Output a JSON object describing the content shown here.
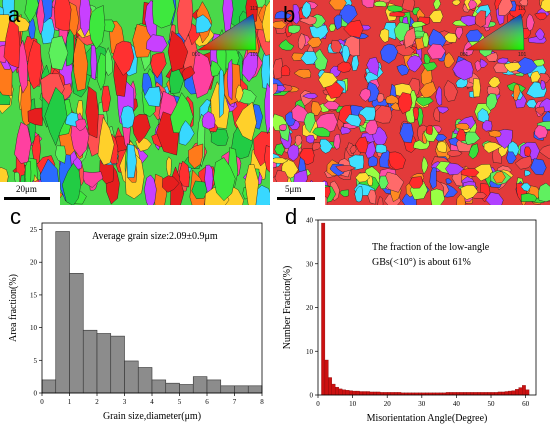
{
  "panels": {
    "a": {
      "letter": "a",
      "scale_label": "20μm",
      "ipf": {
        "top": "111",
        "left": "001",
        "right": "101"
      }
    },
    "b": {
      "letter": "b",
      "scale_label": "5μm",
      "ipf": {
        "top": "111",
        "left": "001",
        "right": "101"
      }
    },
    "c": {
      "letter": "c"
    },
    "d": {
      "letter": "d"
    }
  },
  "chart_data": [
    {
      "type": "bar",
      "panel": "c",
      "annotation": "Average grain size:2.09±0.9μm",
      "xlabel": "Grain size,diameter(μm)",
      "ylabel": "Area fraction(%)",
      "xlim": [
        0,
        8
      ],
      "ylim": [
        0,
        26
      ],
      "xticks": [
        0,
        1,
        2,
        3,
        4,
        5,
        6,
        7,
        8
      ],
      "yticks": [
        0,
        5,
        10,
        15,
        20,
        25
      ],
      "bin_width": 0.5,
      "bin_starts": [
        0,
        0.5,
        1.0,
        1.5,
        2.0,
        2.5,
        3.0,
        3.5,
        4.0,
        4.5,
        5.0,
        5.5,
        6.0,
        6.5,
        7.0,
        7.5
      ],
      "values": [
        2.0,
        24.7,
        18.3,
        9.6,
        9.1,
        8.7,
        4.9,
        3.9,
        2.0,
        1.5,
        1.3,
        2.5,
        2.0,
        1.1,
        1.1,
        1.1
      ],
      "bar_color": "#8c8c8c"
    },
    {
      "type": "bar",
      "panel": "d",
      "annotation_line1": "The fraction of the low-angle",
      "annotation_line2": "GBs(<10°) is about 61%",
      "xlabel": "Misorientation Angle(Degree)",
      "ylabel": "Number Fraction(%)",
      "xlim": [
        0,
        63
      ],
      "ylim": [
        0,
        40
      ],
      "xticks": [
        0,
        10,
        20,
        30,
        40,
        50,
        60
      ],
      "yticks": [
        0,
        10,
        20,
        30,
        40
      ],
      "bin_width": 1,
      "bin_starts": [
        1,
        2,
        3,
        4,
        5,
        6,
        7,
        8,
        9,
        10,
        11,
        12,
        13,
        14,
        15,
        16,
        17,
        18,
        19,
        20,
        21,
        22,
        23,
        24,
        25,
        26,
        27,
        28,
        29,
        30,
        31,
        32,
        33,
        34,
        35,
        36,
        37,
        38,
        39,
        40,
        41,
        42,
        43,
        44,
        45,
        46,
        47,
        48,
        49,
        50,
        51,
        52,
        53,
        54,
        55,
        56,
        57,
        58,
        59,
        60
      ],
      "values": [
        39.3,
        8.0,
        4.0,
        2.5,
        1.8,
        1.4,
        1.2,
        1.1,
        1.0,
        0.9,
        0.9,
        0.8,
        0.8,
        0.8,
        0.7,
        0.7,
        0.7,
        0.6,
        0.6,
        0.6,
        0.6,
        0.6,
        0.6,
        0.5,
        0.5,
        0.5,
        0.5,
        0.5,
        0.5,
        0.5,
        0.5,
        0.5,
        0.5,
        0.5,
        0.5,
        0.5,
        0.6,
        0.6,
        0.6,
        0.6,
        0.6,
        0.6,
        0.6,
        0.6,
        0.6,
        0.6,
        0.6,
        0.6,
        0.6,
        0.6,
        0.6,
        0.7,
        0.7,
        0.8,
        0.9,
        1.0,
        1.3,
        1.7,
        2.2,
        1.2
      ],
      "bar_color": "#cc1111"
    }
  ]
}
